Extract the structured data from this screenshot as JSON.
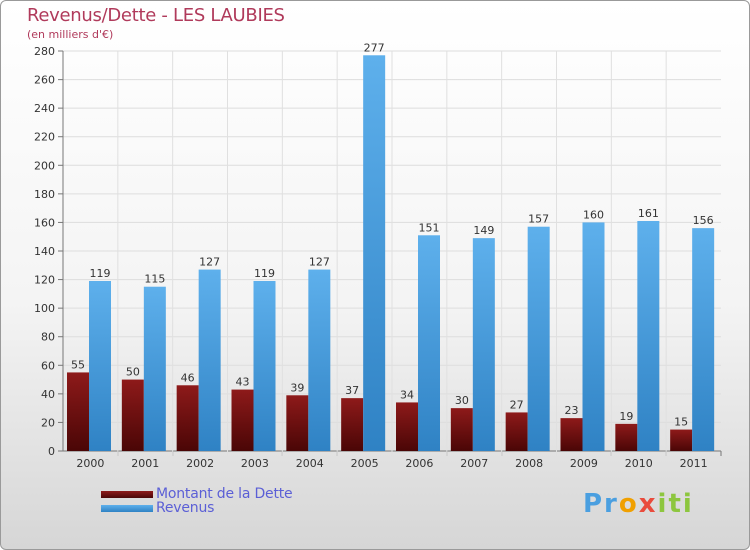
{
  "chart_data": {
    "type": "bar",
    "title": "Revenus/Dette - LES LAUBIES",
    "subtitle": "(en milliers d'€)",
    "categories": [
      "2000",
      "2001",
      "2002",
      "2003",
      "2004",
      "2005",
      "2006",
      "2007",
      "2008",
      "2009",
      "2010",
      "2011"
    ],
    "series": [
      {
        "name": "Montant de la Dette",
        "color": "#7a1010",
        "values": [
          55,
          50,
          46,
          43,
          39,
          37,
          34,
          30,
          27,
          23,
          19,
          15
        ]
      },
      {
        "name": "Revenus",
        "color": "#4a9fe0",
        "values": [
          119,
          115,
          127,
          119,
          127,
          277,
          151,
          149,
          157,
          160,
          161,
          156
        ]
      }
    ],
    "ylim": [
      0,
      280
    ],
    "yticks": [
      0,
      20,
      40,
      60,
      80,
      100,
      120,
      140,
      160,
      180,
      200,
      220,
      240,
      260,
      280
    ],
    "grid": true,
    "legend": "bottom-left"
  },
  "branding": {
    "letters": [
      "Pr",
      "o",
      "x",
      "iti"
    ]
  }
}
